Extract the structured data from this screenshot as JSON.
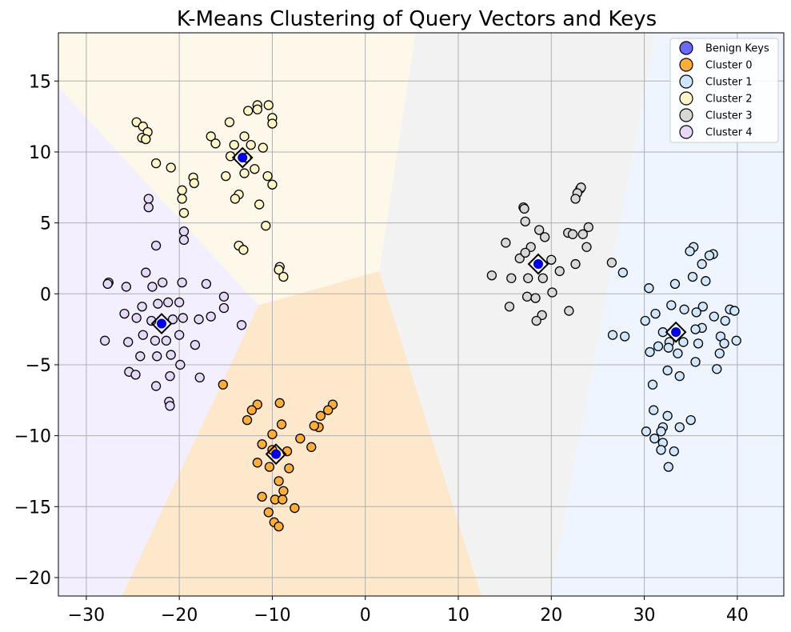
{
  "chart_data": {
    "type": "scatter",
    "title": "K-Means Clustering of Query Vectors and Keys",
    "xlabel": "",
    "ylabel": "",
    "xlim": [
      -33,
      45
    ],
    "ylim": [
      -21.3,
      18.4
    ],
    "x_ticks": [
      -30,
      -20,
      -10,
      0,
      10,
      20,
      30,
      40
    ],
    "y_ticks": [
      -20,
      -15,
      -10,
      -5,
      0,
      5,
      10,
      15
    ],
    "x_tick_labels": [
      "−30",
      "−20",
      "−10",
      "0",
      "10",
      "20",
      "30",
      "40"
    ],
    "y_tick_labels": [
      "−20",
      "−15",
      "−10",
      "−5",
      "0",
      "5",
      "10",
      "15"
    ],
    "grid": true,
    "legend_position": "top-right",
    "decision_regions": [
      {
        "cluster": "Cluster 0",
        "color": "#fde8cc",
        "polygon": [
          [
            -26.2,
            -21.3
          ],
          [
            -11.5,
            -0.8
          ],
          [
            1.5,
            1.6
          ],
          [
            12.5,
            -21.3
          ]
        ]
      },
      {
        "cluster": "Cluster 1",
        "color": "#eef5fe",
        "polygon": [
          [
            19.8,
            -21.3
          ],
          [
            31.2,
            18.4
          ],
          [
            45,
            18.4
          ],
          [
            45,
            -21.3
          ]
        ]
      },
      {
        "cluster": "Cluster 2",
        "color": "#fef8ea",
        "polygon": [
          [
            -33,
            14.6
          ],
          [
            -33,
            18.4
          ],
          [
            5.4,
            18.4
          ],
          [
            1.5,
            1.6
          ],
          [
            -11.5,
            -0.8
          ]
        ]
      },
      {
        "cluster": "Cluster 3",
        "color": "#f2f2f2",
        "polygon": [
          [
            1.5,
            1.6
          ],
          [
            5.4,
            18.4
          ],
          [
            31.2,
            18.4
          ],
          [
            19.8,
            -21.3
          ],
          [
            12.5,
            -21.3
          ]
        ]
      },
      {
        "cluster": "Cluster 4",
        "color": "#f3efff",
        "polygon": [
          [
            -33,
            -21.3
          ],
          [
            -33,
            14.6
          ],
          [
            -11.5,
            -0.8
          ],
          [
            -26.2,
            -21.3
          ]
        ]
      }
    ],
    "series": [
      {
        "name": "Benign Keys",
        "color": "#0000ee",
        "marker": "filled-dot",
        "points": [
          [
            -13.2,
            9.6
          ],
          [
            33.4,
            -2.7
          ],
          [
            18.6,
            2.1
          ],
          [
            -9.6,
            -11.3
          ],
          [
            -21.9,
            -2.1
          ]
        ]
      },
      {
        "name": "Cluster 0",
        "color": "#fbae3c",
        "marker": "circle",
        "points": [
          [
            -15.3,
            -6.4
          ],
          [
            -11.6,
            -7.8
          ],
          [
            -9.2,
            -7.7
          ],
          [
            -12.2,
            -8.2
          ],
          [
            -12.7,
            -8.9
          ],
          [
            -9.0,
            -9.2
          ],
          [
            -10.0,
            -9.9
          ],
          [
            -3.5,
            -7.8
          ],
          [
            -4.0,
            -8.2
          ],
          [
            -4.8,
            -8.6
          ],
          [
            -5.0,
            -9.4
          ],
          [
            -5.5,
            -9.3
          ],
          [
            -5.8,
            -10.8
          ],
          [
            -7.0,
            -10.2
          ],
          [
            -11.1,
            -10.6
          ],
          [
            -10.0,
            -11.0
          ],
          [
            -8.4,
            -11.1
          ],
          [
            -11.6,
            -11.9
          ],
          [
            -10.3,
            -12.2
          ],
          [
            -8.2,
            -12.3
          ],
          [
            -9.3,
            -13.2
          ],
          [
            -8.8,
            -13.9
          ],
          [
            -11.1,
            -14.3
          ],
          [
            -9.7,
            -14.5
          ],
          [
            -8.9,
            -14.5
          ],
          [
            -7.6,
            -15.1
          ],
          [
            -10.4,
            -15.4
          ],
          [
            -9.8,
            -16.1
          ],
          [
            -9.3,
            -16.4
          ]
        ]
      },
      {
        "name": "Cluster 1",
        "color": "#cfe6fb",
        "marker": "circle",
        "points": [
          [
            30.5,
            0.4
          ],
          [
            35.3,
            3.3
          ],
          [
            34.9,
            3.0
          ],
          [
            37.4,
            2.8
          ],
          [
            37.0,
            2.7
          ],
          [
            36.2,
            2.1
          ],
          [
            35.2,
            1.2
          ],
          [
            36.6,
            0.9
          ],
          [
            33.3,
            0.7
          ],
          [
            27.7,
            1.5
          ],
          [
            32.9,
            -0.8
          ],
          [
            36.3,
            -0.9
          ],
          [
            34.3,
            -1.1
          ],
          [
            35.6,
            -1.3
          ],
          [
            39.2,
            -1.1
          ],
          [
            39.7,
            -1.2
          ],
          [
            31.2,
            -1.4
          ],
          [
            30.1,
            -1.9
          ],
          [
            37.5,
            -1.6
          ],
          [
            38.7,
            -1.9
          ],
          [
            36.2,
            -2.4
          ],
          [
            35.5,
            -2.5
          ],
          [
            32.0,
            -2.7
          ],
          [
            32.7,
            -3.4
          ],
          [
            26.6,
            -2.9
          ],
          [
            27.9,
            -3.0
          ],
          [
            38.2,
            -3.0
          ],
          [
            34.2,
            -3.4
          ],
          [
            38.6,
            -3.5
          ],
          [
            39.9,
            -3.3
          ],
          [
            35.8,
            -3.5
          ],
          [
            31.5,
            -3.7
          ],
          [
            32.6,
            -3.8
          ],
          [
            30.6,
            -4.1
          ],
          [
            33.6,
            -4.2
          ],
          [
            38.1,
            -4.2
          ],
          [
            35.5,
            -4.8
          ],
          [
            37.8,
            -5.3
          ],
          [
            32.5,
            -5.4
          ],
          [
            33.8,
            -5.8
          ],
          [
            30.9,
            -6.4
          ],
          [
            31.0,
            -8.2
          ],
          [
            32.5,
            -8.6
          ],
          [
            35.0,
            -8.9
          ],
          [
            32.0,
            -9.4
          ],
          [
            33.8,
            -9.4
          ],
          [
            31.8,
            -9.7
          ],
          [
            30.2,
            -9.7
          ],
          [
            31.1,
            -10.2
          ],
          [
            32.0,
            -10.5
          ],
          [
            31.8,
            -11.0
          ],
          [
            33.2,
            -11.1
          ],
          [
            32.6,
            -12.2
          ]
        ]
      },
      {
        "name": "Cluster 2",
        "color": "#fff5c7",
        "marker": "circle",
        "points": [
          [
            -24.6,
            12.1
          ],
          [
            -23.9,
            11.8
          ],
          [
            -23.4,
            11.4
          ],
          [
            -24.0,
            11.0
          ],
          [
            -23.6,
            10.9
          ],
          [
            -22.5,
            9.2
          ],
          [
            -20.9,
            8.9
          ],
          [
            -18.5,
            8.2
          ],
          [
            -18.4,
            7.8
          ],
          [
            -19.7,
            7.3
          ],
          [
            -19.7,
            6.7
          ],
          [
            -19.5,
            5.7
          ],
          [
            -11.6,
            13.3
          ],
          [
            -10.4,
            13.3
          ],
          [
            -11.6,
            13.0
          ],
          [
            -12.6,
            12.9
          ],
          [
            -10.0,
            12.4
          ],
          [
            -10.0,
            12.0
          ],
          [
            -14.6,
            12.1
          ],
          [
            -16.6,
            11.1
          ],
          [
            -13.0,
            11.1
          ],
          [
            -16.1,
            10.6
          ],
          [
            -14.1,
            10.5
          ],
          [
            -12.3,
            10.5
          ],
          [
            -11.0,
            10.3
          ],
          [
            -14.5,
            9.7
          ],
          [
            -12.8,
            9.6
          ],
          [
            -15.0,
            8.3
          ],
          [
            -13.0,
            8.5
          ],
          [
            -11.9,
            8.8
          ],
          [
            -10.5,
            8.3
          ],
          [
            -10.0,
            7.7
          ],
          [
            -13.6,
            7.0
          ],
          [
            -14.0,
            6.7
          ],
          [
            -11.4,
            6.3
          ],
          [
            -10.7,
            4.8
          ],
          [
            -13.6,
            3.4
          ],
          [
            -13.1,
            3.1
          ],
          [
            -9.2,
            1.9
          ],
          [
            -9.3,
            1.7
          ],
          [
            -8.8,
            1.2
          ]
        ]
      },
      {
        "name": "Cluster 3",
        "color": "#d8d8d8",
        "marker": "circle",
        "points": [
          [
            17.0,
            6.1
          ],
          [
            17.1,
            6.0
          ],
          [
            23.1,
            7.4
          ],
          [
            23.2,
            7.5
          ],
          [
            22.8,
            7.1
          ],
          [
            22.6,
            6.7
          ],
          [
            17.2,
            5.1
          ],
          [
            18.7,
            4.5
          ],
          [
            21.8,
            4.3
          ],
          [
            22.3,
            4.2
          ],
          [
            23.4,
            4.2
          ],
          [
            24.0,
            4.7
          ],
          [
            19.3,
            4.0
          ],
          [
            15.1,
            3.6
          ],
          [
            17.8,
            3.3
          ],
          [
            23.8,
            3.3
          ],
          [
            16.6,
            2.5
          ],
          [
            17.2,
            2.9
          ],
          [
            20.0,
            2.4
          ],
          [
            26.5,
            2.2
          ],
          [
            22.6,
            2.1
          ],
          [
            20.9,
            1.6
          ],
          [
            13.6,
            1.3
          ],
          [
            15.7,
            1.1
          ],
          [
            17.5,
            1.1
          ],
          [
            19.1,
            1.1
          ],
          [
            20.1,
            0.1
          ],
          [
            17.4,
            -0.2
          ],
          [
            18.3,
            -0.3
          ],
          [
            15.5,
            -0.9
          ],
          [
            21.9,
            -1.2
          ],
          [
            19.0,
            -1.5
          ],
          [
            18.4,
            -1.9
          ]
        ]
      },
      {
        "name": "Cluster 4",
        "color": "#e6d8f7",
        "marker": "circle",
        "points": [
          [
            -23.3,
            6.7
          ],
          [
            -23.3,
            6.1
          ],
          [
            -19.5,
            4.4
          ],
          [
            -19.5,
            3.8
          ],
          [
            -22.5,
            3.4
          ],
          [
            -23.6,
            1.5
          ],
          [
            -27.6,
            0.8
          ],
          [
            -27.7,
            0.7
          ],
          [
            -25.7,
            0.5
          ],
          [
            -22.9,
            0.5
          ],
          [
            -21.8,
            0.8
          ],
          [
            -19.7,
            0.8
          ],
          [
            -17.1,
            0.7
          ],
          [
            -15.2,
            -0.2
          ],
          [
            -15.2,
            -1.0
          ],
          [
            -24.0,
            -0.9
          ],
          [
            -22.3,
            -0.7
          ],
          [
            -21.2,
            -0.6
          ],
          [
            -20.0,
            -0.6
          ],
          [
            -25.9,
            -1.4
          ],
          [
            -24.6,
            -1.7
          ],
          [
            -23.0,
            -1.9
          ],
          [
            -20.7,
            -1.8
          ],
          [
            -19.6,
            -1.7
          ],
          [
            -17.9,
            -1.8
          ],
          [
            -16.6,
            -1.6
          ],
          [
            -13.3,
            -2.2
          ],
          [
            -23.9,
            -2.9
          ],
          [
            -22.6,
            -3.3
          ],
          [
            -21.4,
            -3.3
          ],
          [
            -20.0,
            -2.9
          ],
          [
            -28.0,
            -3.3
          ],
          [
            -25.5,
            -3.4
          ],
          [
            -18.3,
            -3.6
          ],
          [
            -24.2,
            -4.4
          ],
          [
            -22.4,
            -4.4
          ],
          [
            -20.9,
            -4.3
          ],
          [
            -19.9,
            -5.0
          ],
          [
            -25.4,
            -5.5
          ],
          [
            -24.7,
            -5.7
          ],
          [
            -21.0,
            -5.8
          ],
          [
            -17.8,
            -5.9
          ],
          [
            -22.5,
            -6.5
          ],
          [
            -21.1,
            -7.6
          ],
          [
            -21.0,
            -7.9
          ]
        ]
      }
    ],
    "centroids": {
      "marker": "diamond",
      "points": [
        [
          -9.6,
          -11.3
        ],
        [
          33.4,
          -2.7
        ],
        [
          -13.2,
          9.6
        ],
        [
          18.6,
          2.1
        ],
        [
          -21.9,
          -2.1
        ]
      ]
    },
    "legend": [
      {
        "label": "Benign Keys",
        "color": "#6a6af8"
      },
      {
        "label": "Cluster 0",
        "color": "#fbae3c"
      },
      {
        "label": "Cluster 1",
        "color": "#cfe6fb"
      },
      {
        "label": "Cluster 2",
        "color": "#fff5c7"
      },
      {
        "label": "Cluster 3",
        "color": "#d8d8d8"
      },
      {
        "label": "Cluster 4",
        "color": "#e6d8f7"
      }
    ]
  }
}
